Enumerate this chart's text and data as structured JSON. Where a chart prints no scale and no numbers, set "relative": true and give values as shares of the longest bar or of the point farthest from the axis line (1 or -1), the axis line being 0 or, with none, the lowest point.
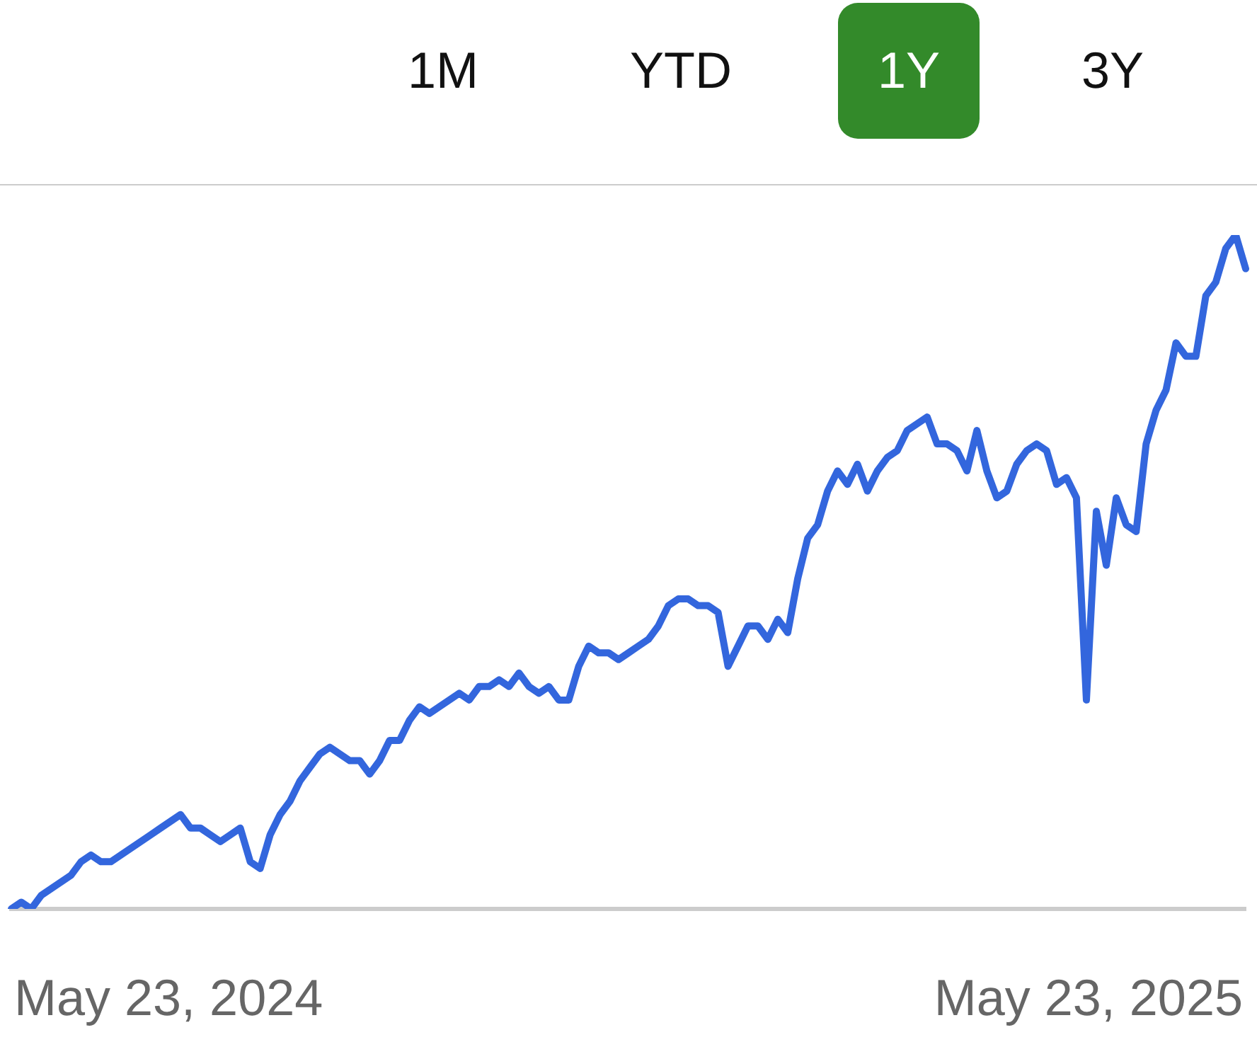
{
  "chart_data": {
    "type": "line",
    "relative": true,
    "annotations": [
      "1M",
      "YTD",
      "1Y",
      "3Y",
      "May 23, 2024",
      "May 23, 2025"
    ],
    "categories": [
      null,
      null,
      null,
      null,
      null,
      null,
      null,
      null,
      null,
      null,
      null,
      null,
      null,
      null,
      null,
      null,
      null,
      null,
      null,
      null,
      null,
      null,
      null,
      null,
      null,
      null,
      null,
      null,
      null,
      null,
      null,
      null,
      null,
      null,
      null,
      null,
      null,
      null,
      null,
      null,
      null,
      null,
      null,
      null,
      null,
      null,
      null,
      null,
      null,
      null,
      null,
      null,
      null,
      null,
      null,
      null,
      null,
      null,
      null,
      null,
      null,
      null,
      null,
      null,
      null,
      null,
      null,
      null,
      null,
      null,
      null,
      null,
      null,
      null,
      null,
      null,
      null,
      null,
      null,
      null,
      null,
      null,
      null,
      null,
      null,
      null,
      null,
      null,
      null,
      null,
      null,
      null,
      null,
      null,
      null,
      null,
      null,
      null,
      null,
      null,
      null,
      null,
      null,
      null,
      null,
      null,
      null,
      null,
      null,
      null,
      null,
      null,
      null,
      null,
      null,
      null,
      null,
      null,
      null,
      null,
      null,
      null,
      null,
      null,
      null
    ],
    "series": [
      {
        "color": "#3366dd",
        "values": [
          0.0,
          0.01,
          0.0,
          0.02,
          0.03,
          0.04,
          0.05,
          0.07,
          0.08,
          0.07,
          0.07,
          0.08,
          0.09,
          0.1,
          0.11,
          0.12,
          0.13,
          0.14,
          0.12,
          0.12,
          0.11,
          0.1,
          0.11,
          0.12,
          0.07,
          0.06,
          0.11,
          0.14,
          0.16,
          0.19,
          0.21,
          0.23,
          0.24,
          0.23,
          0.22,
          0.22,
          0.2,
          0.22,
          0.25,
          0.25,
          0.28,
          0.3,
          0.29,
          0.3,
          0.31,
          0.32,
          0.31,
          0.33,
          0.33,
          0.34,
          0.33,
          0.35,
          0.33,
          0.32,
          0.33,
          0.31,
          0.31,
          0.36,
          0.39,
          0.38,
          0.38,
          0.37,
          0.38,
          0.39,
          0.4,
          0.42,
          0.45,
          0.46,
          0.46,
          0.45,
          0.45,
          0.44,
          0.36,
          0.39,
          0.42,
          0.42,
          0.4,
          0.43,
          0.41,
          0.49,
          0.55,
          0.57,
          0.62,
          0.65,
          0.63,
          0.66,
          0.62,
          0.65,
          0.67,
          0.68,
          0.71,
          0.72,
          0.73,
          0.69,
          0.69,
          0.68,
          0.65,
          0.71,
          0.65,
          0.61,
          0.62,
          0.66,
          0.68,
          0.69,
          0.68,
          0.63,
          0.64,
          0.61,
          0.31,
          0.59,
          0.51,
          0.61,
          0.57,
          0.56,
          0.69,
          0.74,
          0.77,
          0.84,
          0.82,
          0.82,
          0.91,
          0.93,
          0.98,
          1.0,
          0.95
        ]
      }
    ],
    "grid": false,
    "legend": false,
    "marker": "none",
    "line_style": "solid"
  }
}
